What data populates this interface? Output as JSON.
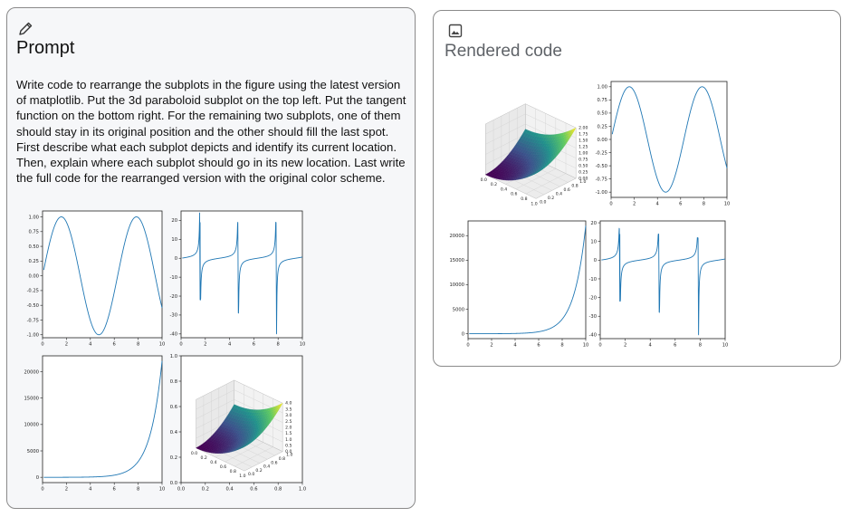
{
  "prompt": {
    "icon": "pencil-icon",
    "title": "Prompt",
    "text": "Write code to rearrange the subplots in the figure using the latest version of matplotlib. Put the 3d paraboloid subplot on the top left. Put the tangent function on the bottom right. For the remaining two subplots, one of them should stay in its original position and the other should fill the last spot. First describe what each subplot depicts and identify its current location. Then, explain where each subplot should go in its new location.  Last write the full code for the rearranged version with the original color scheme."
  },
  "rendered": {
    "icon": "image-icon",
    "title": "Rendered code"
  },
  "colors": {
    "line": "#1f77b4",
    "viridis": [
      "#440154",
      "#3b528b",
      "#21918c",
      "#5ec962",
      "#fde725"
    ]
  },
  "chart_data": [
    {
      "id": "prompt_sine",
      "type": "line",
      "title": "",
      "function": "sin(x)",
      "xlim": [
        0,
        10
      ],
      "ylim": [
        -1.05,
        1.1
      ],
      "xticks": [
        "0",
        "2",
        "4",
        "6",
        "8",
        "10"
      ],
      "yticks": [
        "-1.00",
        "-0.75",
        "-0.50",
        "-0.25",
        "0.00",
        "0.25",
        "0.50",
        "0.75",
        "1.00"
      ]
    },
    {
      "id": "prompt_tan",
      "type": "line",
      "title": "",
      "function": "tan(x)",
      "xlim": [
        0,
        10
      ],
      "ylim": [
        -42,
        25
      ],
      "xticks": [
        "0",
        "2",
        "4",
        "6",
        "8",
        "10"
      ],
      "yticks": [
        "-40",
        "-30",
        "-20",
        "-10",
        "0",
        "10",
        "20"
      ],
      "spike_peaks": [
        {
          "x": 1.55,
          "high": 24,
          "low": -22
        },
        {
          "x": 4.7,
          "high": 19,
          "low": -29
        },
        {
          "x": 7.85,
          "high": 19,
          "low": -40
        }
      ]
    },
    {
      "id": "prompt_exp",
      "type": "line",
      "title": "",
      "function": "exp(x)",
      "xlim": [
        0,
        10
      ],
      "ylim": [
        -1000,
        23000
      ],
      "xticks": [
        "0",
        "2",
        "4",
        "6",
        "8",
        "10"
      ],
      "yticks": [
        "0",
        "5000",
        "10000",
        "15000",
        "20000"
      ]
    },
    {
      "id": "prompt_paraboloid",
      "type": "surface3d",
      "title": "",
      "function": "x^2 + y^2",
      "outer_xticks": [
        "0.0",
        "0.2",
        "0.4",
        "0.6",
        "0.8",
        "1.0"
      ],
      "outer_yticks": [
        "0.0",
        "0.2",
        "0.4",
        "0.6",
        "0.8",
        "1.0"
      ],
      "xticks": [
        "0.0",
        "0.2",
        "0.4",
        "0.6",
        "0.8",
        "1.0"
      ],
      "yticks": [
        "0.0",
        "0.2",
        "0.4",
        "0.6",
        "0.8",
        "1.0"
      ],
      "zticks": [
        "0.0",
        "0.5",
        "1.0",
        "1.5",
        "2.0",
        "2.5",
        "3.0",
        "3.5",
        "4.0"
      ]
    },
    {
      "id": "rendered_paraboloid",
      "type": "surface3d",
      "title": "",
      "function": "x^2 + y^2",
      "xticks": [
        "0.0",
        "0.2",
        "0.4",
        "0.6",
        "0.8",
        "1.0"
      ],
      "yticks": [
        "0.0",
        "0.2",
        "0.4",
        "0.6",
        "0.8",
        "1.0"
      ],
      "zticks": [
        "0.00",
        "0.25",
        "0.50",
        "0.75",
        "1.00",
        "1.25",
        "1.50",
        "1.75",
        "2.00"
      ]
    },
    {
      "id": "rendered_sine",
      "type": "line",
      "title": "",
      "function": "sin(x)",
      "xlim": [
        0,
        10
      ],
      "ylim": [
        -1.1,
        1.1
      ],
      "xticks": [
        "0",
        "2",
        "4",
        "6",
        "8",
        "10"
      ],
      "yticks": [
        "-1.00",
        "-0.75",
        "-0.50",
        "-0.25",
        "0.00",
        "0.25",
        "0.50",
        "0.75",
        "1.00"
      ]
    },
    {
      "id": "rendered_exp",
      "type": "line",
      "title": "",
      "function": "exp(x)",
      "xlim": [
        0,
        10
      ],
      "ylim": [
        -1000,
        23000
      ],
      "xticks": [
        "0",
        "2",
        "4",
        "6",
        "8",
        "10"
      ],
      "yticks": [
        "0",
        "5000",
        "10000",
        "15000",
        "20000"
      ]
    },
    {
      "id": "rendered_tan",
      "type": "line",
      "title": "",
      "function": "tan(x)",
      "xlim": [
        0,
        10
      ],
      "ylim": [
        -42,
        21
      ],
      "xticks": [
        "0",
        "2",
        "4",
        "6",
        "8",
        "10"
      ],
      "yticks": [
        "-40",
        "-30",
        "-20",
        "-10",
        "0",
        "10",
        "20"
      ],
      "spike_peaks": [
        {
          "x": 1.55,
          "high": 17,
          "low": -22
        },
        {
          "x": 4.7,
          "high": 14,
          "low": -28
        },
        {
          "x": 7.85,
          "high": 12,
          "low": -40
        }
      ]
    }
  ]
}
